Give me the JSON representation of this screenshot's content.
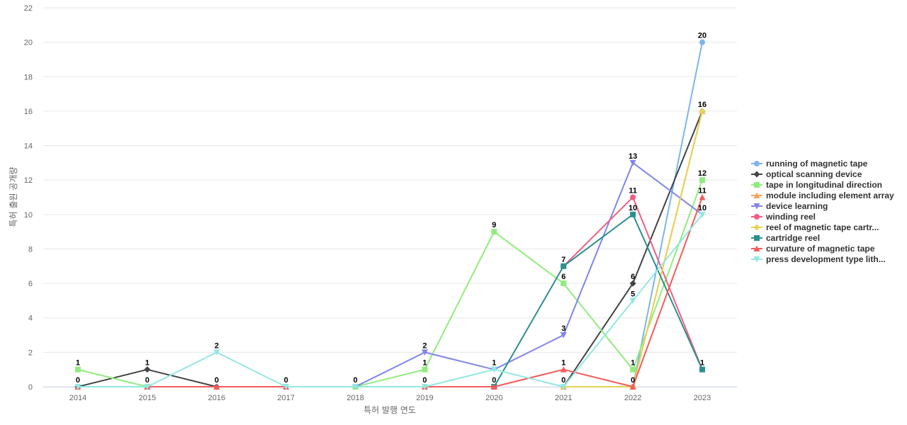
{
  "chart_data": {
    "type": "line",
    "xlabel": "특허 발행 연도",
    "ylabel": "특허 출원 공개량",
    "x": [
      "2014",
      "2015",
      "2016",
      "2017",
      "2018",
      "2019",
      "2020",
      "2021",
      "2022",
      "2023"
    ],
    "ylim": [
      0,
      22
    ],
    "yticks": [
      0,
      2,
      4,
      6,
      8,
      10,
      12,
      14,
      16,
      18,
      20,
      22
    ],
    "grid": true,
    "legend_position": "right",
    "series": [
      {
        "name": "running of magnetic tape",
        "color": "#7cb5ec",
        "marker": "circle",
        "values": [
          null,
          null,
          null,
          null,
          null,
          null,
          null,
          null,
          0,
          20
        ]
      },
      {
        "name": "optical scanning device",
        "color": "#434348",
        "marker": "diamond",
        "values": [
          0,
          1,
          0,
          null,
          null,
          null,
          null,
          0,
          6,
          16
        ]
      },
      {
        "name": "tape in longitudinal direction",
        "color": "#90ed7d",
        "marker": "square",
        "values": [
          1,
          0,
          null,
          null,
          0,
          1,
          9,
          6,
          1,
          12
        ]
      },
      {
        "name": "module including element array",
        "color": "#f7a35c",
        "marker": "triangle",
        "values": [
          null,
          null,
          null,
          null,
          null,
          null,
          null,
          0,
          0,
          16
        ]
      },
      {
        "name": "device learning",
        "color": "#8085e9",
        "marker": "triangle-down",
        "values": [
          null,
          null,
          null,
          null,
          0,
          2,
          1,
          3,
          13,
          10
        ]
      },
      {
        "name": "winding reel",
        "color": "#f15c80",
        "marker": "circle",
        "values": [
          null,
          null,
          null,
          null,
          null,
          null,
          null,
          7,
          11,
          1
        ]
      },
      {
        "name": "reel of magnetic tape cartr...",
        "color": "#e4d354",
        "marker": "diamond",
        "values": [
          null,
          null,
          null,
          null,
          null,
          null,
          null,
          0,
          0,
          16
        ]
      },
      {
        "name": "cartridge reel",
        "color": "#2b908f",
        "marker": "square",
        "values": [
          null,
          null,
          null,
          null,
          null,
          null,
          0,
          7,
          10,
          1
        ]
      },
      {
        "name": "curvature of magnetic tape",
        "color": "#f45b5b",
        "marker": "triangle",
        "values": [
          0,
          0,
          0,
          0,
          null,
          0,
          0,
          1,
          0,
          11
        ]
      },
      {
        "name": "press development type lith...",
        "color": "#91e8e1",
        "marker": "triangle-down",
        "values": [
          0,
          0,
          2,
          0,
          0,
          0,
          1,
          0,
          5,
          10
        ]
      }
    ],
    "data_labels": [
      {
        "x": "2014",
        "y": 1,
        "text": "1"
      },
      {
        "x": "2014",
        "y": 0,
        "text": "0"
      },
      {
        "x": "2015",
        "y": 1,
        "text": "1"
      },
      {
        "x": "2015",
        "y": 0,
        "text": "0"
      },
      {
        "x": "2016",
        "y": 2,
        "text": "2"
      },
      {
        "x": "2016",
        "y": 0,
        "text": "0"
      },
      {
        "x": "2017",
        "y": 0,
        "text": "0"
      },
      {
        "x": "2018",
        "y": 0,
        "text": "0"
      },
      {
        "x": "2019",
        "y": 2,
        "text": "2"
      },
      {
        "x": "2019",
        "y": 1,
        "text": "1"
      },
      {
        "x": "2019",
        "y": 0,
        "text": "0"
      },
      {
        "x": "2020",
        "y": 9,
        "text": "9"
      },
      {
        "x": "2020",
        "y": 1,
        "text": "1"
      },
      {
        "x": "2020",
        "y": 0,
        "text": "0"
      },
      {
        "x": "2021",
        "y": 7,
        "text": "7"
      },
      {
        "x": "2021",
        "y": 6,
        "text": "6"
      },
      {
        "x": "2021",
        "y": 3,
        "text": "3"
      },
      {
        "x": "2021",
        "y": 1,
        "text": "1"
      },
      {
        "x": "2021",
        "y": 0,
        "text": "0"
      },
      {
        "x": "2022",
        "y": 13,
        "text": "13"
      },
      {
        "x": "2022",
        "y": 11,
        "text": "11"
      },
      {
        "x": "2022",
        "y": 10,
        "text": "10"
      },
      {
        "x": "2022",
        "y": 6,
        "text": "6"
      },
      {
        "x": "2022",
        "y": 5,
        "text": "5"
      },
      {
        "x": "2022",
        "y": 1,
        "text": "1"
      },
      {
        "x": "2022",
        "y": 0,
        "text": "0"
      },
      {
        "x": "2023",
        "y": 20,
        "text": "20"
      },
      {
        "x": "2023",
        "y": 16,
        "text": "16"
      },
      {
        "x": "2023",
        "y": 12,
        "text": "12"
      },
      {
        "x": "2023",
        "y": 11,
        "text": "11"
      },
      {
        "x": "2023",
        "y": 10,
        "text": "10"
      },
      {
        "x": "2023",
        "y": 1,
        "text": "1"
      }
    ]
  }
}
